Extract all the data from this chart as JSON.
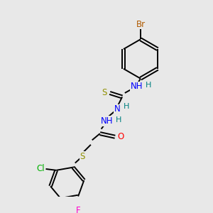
{
  "bg_color": "#e8e8e8",
  "bond_color": "#000000",
  "atom_colors": {
    "Br": "#b05a00",
    "N": "#0000ff",
    "H": "#008080",
    "S": "#909000",
    "O": "#ff0000",
    "Cl": "#00b000",
    "F": "#ff00cc",
    "C": "#000000"
  },
  "font_size": 8.5,
  "lw": 1.4
}
